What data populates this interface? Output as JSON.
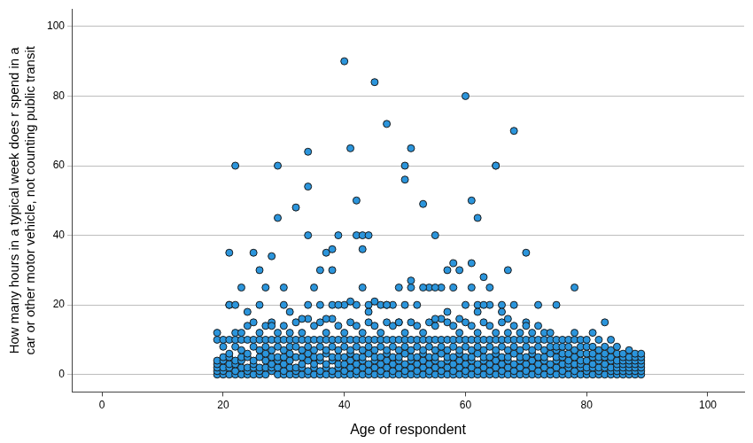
{
  "chart_data": {
    "type": "scatter",
    "x_label": "Age of respondent",
    "y_label": [
      "How many hours in a typical week does r spend in a",
      "car or other motor vehicle, not counting public transit"
    ],
    "color": "#2b95dc",
    "marker": "circle",
    "grid": true,
    "xlim": [
      -5,
      106
    ],
    "xticks": [
      0,
      20,
      40,
      60,
      80,
      100
    ],
    "ylim": [
      -5,
      105
    ],
    "yticks": [
      0,
      20,
      40,
      60,
      80,
      100
    ],
    "x": [
      19,
      19,
      19,
      19,
      19,
      19,
      19,
      20,
      20,
      20,
      20,
      20,
      20,
      20,
      21,
      21,
      21,
      21,
      21,
      21,
      21,
      22,
      22,
      22,
      22,
      22,
      22,
      22,
      23,
      23,
      23,
      23,
      23,
      23,
      23,
      24,
      24,
      24,
      24,
      24,
      24,
      24,
      25,
      25,
      25,
      25,
      25,
      25,
      25,
      26,
      26,
      26,
      26,
      26,
      26,
      26,
      27,
      27,
      27,
      27,
      27,
      27,
      27,
      28,
      28,
      28,
      28,
      28,
      28,
      28,
      29,
      29,
      29,
      29,
      29,
      29,
      29,
      30,
      30,
      30,
      30,
      30,
      30,
      30,
      31,
      31,
      31,
      31,
      31,
      31,
      31,
      32,
      32,
      32,
      32,
      32,
      32,
      32,
      33,
      33,
      33,
      33,
      33,
      33,
      33,
      34,
      34,
      34,
      34,
      34,
      34,
      34,
      35,
      35,
      35,
      35,
      35,
      35,
      35,
      36,
      36,
      36,
      36,
      36,
      36,
      36,
      37,
      37,
      37,
      37,
      37,
      37,
      37,
      38,
      38,
      38,
      38,
      38,
      38,
      38,
      39,
      39,
      39,
      39,
      39,
      39,
      39,
      40,
      40,
      40,
      40,
      40,
      40,
      40,
      41,
      41,
      41,
      41,
      41,
      41,
      41,
      42,
      42,
      42,
      42,
      42,
      42,
      42,
      43,
      43,
      43,
      43,
      43,
      43,
      43,
      44,
      44,
      44,
      44,
      44,
      44,
      44,
      45,
      45,
      45,
      45,
      45,
      45,
      45,
      46,
      46,
      46,
      46,
      46,
      46,
      46,
      47,
      47,
      47,
      47,
      47,
      47,
      47,
      48,
      48,
      48,
      48,
      48,
      48,
      48,
      49,
      49,
      49,
      49,
      49,
      49,
      49,
      50,
      50,
      50,
      50,
      50,
      50,
      50,
      51,
      51,
      51,
      51,
      51,
      51,
      51,
      52,
      52,
      52,
      52,
      52,
      52,
      52,
      53,
      53,
      53,
      53,
      53,
      53,
      53,
      54,
      54,
      54,
      54,
      54,
      54,
      54,
      55,
      55,
      55,
      55,
      55,
      55,
      55,
      56,
      56,
      56,
      56,
      56,
      56,
      56,
      57,
      57,
      57,
      57,
      57,
      57,
      57,
      58,
      58,
      58,
      58,
      58,
      58,
      58,
      59,
      59,
      59,
      59,
      59,
      59,
      59,
      60,
      60,
      60,
      60,
      60,
      60,
      60,
      61,
      61,
      61,
      61,
      61,
      61,
      61,
      62,
      62,
      62,
      62,
      62,
      62,
      62,
      63,
      63,
      63,
      63,
      63,
      63,
      63,
      64,
      64,
      64,
      64,
      64,
      64,
      64,
      65,
      65,
      65,
      65,
      65,
      65,
      65,
      66,
      66,
      66,
      66,
      66,
      66,
      66,
      67,
      67,
      67,
      67,
      67,
      67,
      67,
      68,
      68,
      68,
      68,
      68,
      68,
      68,
      69,
      69,
      69,
      69,
      69,
      69,
      69,
      70,
      70,
      70,
      70,
      70,
      70,
      70,
      71,
      71,
      71,
      71,
      71,
      71,
      71,
      72,
      72,
      72,
      72,
      72,
      72,
      72,
      73,
      73,
      73,
      73,
      73,
      73,
      73,
      74,
      74,
      74,
      74,
      74,
      74,
      74,
      75,
      75,
      75,
      75,
      75,
      75,
      75,
      76,
      76,
      76,
      76,
      76,
      76,
      76,
      77,
      77,
      77,
      77,
      77,
      77,
      77,
      78,
      78,
      78,
      78,
      78,
      78,
      78,
      79,
      79,
      79,
      79,
      79,
      79,
      79,
      80,
      80,
      80,
      80,
      80,
      80,
      80,
      81,
      81,
      81,
      81,
      81,
      81,
      81,
      82,
      82,
      82,
      82,
      82,
      82,
      82,
      83,
      83,
      83,
      83,
      83,
      83,
      83,
      84,
      84,
      84,
      84,
      84,
      84,
      84,
      85,
      85,
      85,
      85,
      85,
      85,
      85,
      86,
      86,
      86,
      86,
      86,
      86,
      86,
      87,
      87,
      87,
      87,
      87,
      87,
      87,
      88,
      88,
      88,
      88,
      88,
      88,
      88,
      89,
      89,
      89,
      89,
      89,
      89,
      89,
      22,
      29,
      29,
      32,
      34,
      34,
      34,
      40,
      41,
      42,
      42,
      43,
      44,
      45,
      47,
      50,
      50,
      51,
      53,
      55,
      60,
      61,
      62,
      65,
      65,
      68,
      70,
      21,
      25,
      26,
      28,
      37,
      38,
      38,
      36,
      39,
      43,
      58,
      61,
      63,
      67,
      78,
      72,
      75,
      23,
      30,
      27,
      21,
      22,
      26,
      30,
      34,
      36,
      38,
      40,
      42,
      44,
      46,
      48,
      50,
      52,
      54,
      56,
      58,
      60,
      62,
      64,
      66,
      68,
      41,
      45,
      47,
      49,
      51,
      53,
      55,
      57,
      59,
      61,
      63,
      35,
      39,
      43,
      47,
      51,
      55,
      59,
      64,
      66,
      33,
      24,
      28,
      31,
      37,
      44,
      49,
      57,
      62,
      67,
      70
    ],
    "values": [
      0,
      1,
      2,
      3,
      4,
      10,
      12,
      0,
      1,
      2,
      4,
      5,
      8,
      10,
      0,
      2,
      3,
      5,
      6,
      10,
      20,
      0,
      1,
      3,
      4,
      8,
      10,
      12,
      0,
      2,
      4,
      5,
      7,
      10,
      12,
      0,
      1,
      2,
      5,
      6,
      10,
      14,
      0,
      2,
      3,
      4,
      8,
      10,
      15,
      0,
      1,
      2,
      5,
      7,
      10,
      12,
      0,
      2,
      4,
      6,
      8,
      10,
      14,
      1,
      2,
      3,
      5,
      7,
      10,
      15,
      0,
      2,
      4,
      5,
      8,
      10,
      12,
      0,
      1,
      3,
      5,
      7,
      10,
      14,
      0,
      2,
      4,
      6,
      8,
      10,
      12,
      0,
      1,
      2,
      5,
      8,
      10,
      15,
      0,
      2,
      3,
      5,
      7,
      10,
      12,
      0,
      1,
      4,
      6,
      8,
      10,
      16,
      0,
      2,
      3,
      5,
      7,
      10,
      14,
      0,
      1,
      4,
      5,
      8,
      10,
      15,
      0,
      2,
      3,
      6,
      7,
      10,
      12,
      0,
      1,
      4,
      5,
      8,
      10,
      16,
      0,
      2,
      3,
      5,
      7,
      10,
      14,
      0,
      1,
      3,
      5,
      8,
      10,
      12,
      0,
      2,
      4,
      6,
      7,
      10,
      15,
      0,
      1,
      3,
      5,
      8,
      10,
      14,
      0,
      2,
      4,
      5,
      7,
      10,
      12,
      0,
      1,
      3,
      6,
      8,
      10,
      15,
      0,
      2,
      4,
      5,
      7,
      10,
      14,
      0,
      1,
      3,
      5,
      8,
      10,
      12,
      0,
      2,
      4,
      6,
      7,
      10,
      15,
      0,
      1,
      3,
      5,
      8,
      10,
      14,
      0,
      2,
      4,
      5,
      7,
      10,
      15,
      0,
      1,
      3,
      6,
      8,
      10,
      12,
      0,
      2,
      4,
      5,
      7,
      10,
      15,
      0,
      1,
      3,
      5,
      8,
      10,
      14,
      0,
      2,
      4,
      6,
      7,
      10,
      12,
      0,
      1,
      3,
      5,
      8,
      10,
      15,
      0,
      2,
      4,
      5,
      7,
      10,
      14,
      0,
      1,
      3,
      6,
      8,
      10,
      16,
      0,
      2,
      4,
      5,
      7,
      10,
      15,
      0,
      1,
      3,
      5,
      8,
      10,
      14,
      0,
      2,
      4,
      6,
      7,
      10,
      12,
      0,
      1,
      3,
      5,
      8,
      10,
      15,
      0,
      2,
      4,
      5,
      7,
      10,
      14,
      0,
      1,
      3,
      6,
      8,
      10,
      12,
      0,
      2,
      4,
      5,
      7,
      10,
      15,
      0,
      1,
      3,
      5,
      8,
      10,
      14,
      0,
      2,
      4,
      6,
      7,
      10,
      12,
      0,
      1,
      3,
      5,
      8,
      10,
      15,
      0,
      2,
      4,
      5,
      7,
      10,
      12,
      0,
      1,
      3,
      6,
      8,
      10,
      14,
      0,
      2,
      4,
      5,
      7,
      10,
      12,
      0,
      1,
      3,
      5,
      8,
      10,
      15,
      0,
      2,
      4,
      6,
      7,
      10,
      12,
      0,
      1,
      3,
      5,
      8,
      10,
      14,
      0,
      2,
      4,
      5,
      7,
      10,
      12,
      0,
      1,
      3,
      6,
      8,
      10,
      12,
      0,
      2,
      4,
      5,
      7,
      8,
      10,
      0,
      1,
      3,
      5,
      6,
      8,
      10,
      0,
      2,
      3,
      4,
      6,
      8,
      10,
      0,
      1,
      3,
      5,
      7,
      10,
      12,
      0,
      2,
      3,
      4,
      6,
      8,
      10,
      0,
      1,
      2,
      4,
      6,
      8,
      10,
      0,
      2,
      3,
      5,
      6,
      8,
      12,
      0,
      1,
      2,
      4,
      5,
      7,
      10,
      0,
      2,
      3,
      5,
      6,
      8,
      15,
      0,
      1,
      2,
      4,
      5,
      7,
      10,
      0,
      1,
      2,
      3,
      4,
      6,
      8,
      0,
      1,
      2,
      3,
      4,
      5,
      6,
      0,
      1,
      2,
      3,
      4,
      5,
      7,
      0,
      1,
      2,
      3,
      4,
      5,
      6,
      0,
      1,
      2,
      3,
      4,
      5,
      6,
      60,
      60,
      45,
      48,
      64,
      54,
      40,
      90,
      65,
      50,
      40,
      40,
      40,
      84,
      72,
      60,
      56,
      65,
      49,
      40,
      80,
      50,
      45,
      60,
      60,
      70,
      35,
      35,
      35,
      30,
      34,
      35,
      36,
      30,
      30,
      40,
      36,
      32,
      32,
      28,
      30,
      25,
      20,
      20,
      25,
      25,
      25,
      20,
      20,
      20,
      20,
      20,
      20,
      20,
      20,
      20,
      20,
      20,
      20,
      20,
      20,
      25,
      25,
      25,
      20,
      20,
      20,
      20,
      20,
      21,
      21,
      20,
      25,
      27,
      25,
      25,
      30,
      30,
      25,
      20,
      25,
      20,
      25,
      20,
      25,
      16,
      16,
      25,
      18,
      16,
      18,
      14,
      18,
      16,
      18,
      15,
      18,
      18,
      16,
      14
    ]
  }
}
